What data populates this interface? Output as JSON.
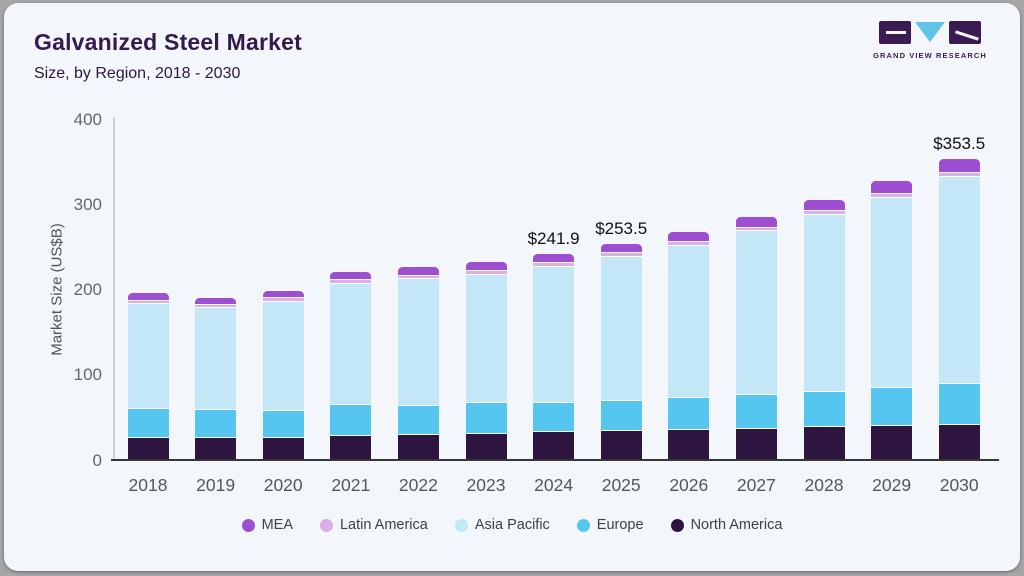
{
  "header": {
    "title": "Galvanized Steel Market",
    "subtitle": "Size, by Region, 2018 - 2030",
    "logo_brand": "GRAND VIEW RESEARCH"
  },
  "colors": {
    "card_bg": "#f3f6fa",
    "frame_bg": "#a6a6a6",
    "title_text": "#331a50",
    "axis_text": "#63676e",
    "x_axis_line": "#35353a",
    "y_axis_line": "#c9cdd6"
  },
  "chart_data": {
    "type": "bar",
    "stacked": true,
    "title": "Galvanized Steel Market Size, by Region, 2018 - 2030",
    "xlabel": "",
    "ylabel": "Market Size (US$B)",
    "ylim": [
      0,
      400
    ],
    "yticks": [
      0,
      100,
      200,
      300,
      400
    ],
    "grid": false,
    "legend_position": "bottom",
    "categories": [
      2018,
      2019,
      2020,
      2021,
      2022,
      2023,
      2024,
      2025,
      2026,
      2027,
      2028,
      2029,
      2030
    ],
    "series": [
      {
        "name": "North America",
        "color": "#2e1540",
        "values": [
          27.0,
          26.5,
          27.5,
          29.5,
          31.0,
          32.0,
          34.5,
          35.5,
          36.0,
          37.5,
          39.5,
          41.0,
          42.5
        ]
      },
      {
        "name": "Europe",
        "color": "#55c6ef",
        "values": [
          34.5,
          33.5,
          31.5,
          36.0,
          34.0,
          36.0,
          34.0,
          34.7,
          37.5,
          40.0,
          42.0,
          44.5,
          48.0
        ]
      },
      {
        "name": "Asia Pacific",
        "color": "#c4e7f8",
        "values": [
          123.0,
          119.5,
          128.0,
          142.5,
          148.3,
          150.8,
          159.7,
          169.5,
          179.5,
          192.3,
          207.8,
          223.6,
          243.2
        ]
      },
      {
        "name": "Latin America",
        "color": "#d9aee9",
        "values": [
          3.8,
          3.7,
          3.9,
          4.0,
          4.1,
          4.2,
          4.3,
          4.1,
          4.3,
          4.4,
          4.6,
          4.7,
          4.8
        ]
      },
      {
        "name": "MEA",
        "color": "#9e4fd1",
        "values": [
          7.7,
          7.6,
          8.0,
          8.8,
          9.0,
          9.2,
          9.4,
          9.7,
          10.2,
          10.6,
          11.6,
          13.7,
          15.0
        ]
      }
    ],
    "totals": [
      196.0,
      190.8,
      198.9,
      220.8,
      226.4,
      232.2,
      241.9,
      253.5,
      267.5,
      284.8,
      305.5,
      327.5,
      353.5
    ],
    "totals_labels": {
      "2024": "$241.9",
      "2025": "$253.5",
      "2030": "$353.5"
    },
    "legend": [
      "MEA",
      "Latin America",
      "Asia Pacific",
      "Europe",
      "North America"
    ]
  }
}
